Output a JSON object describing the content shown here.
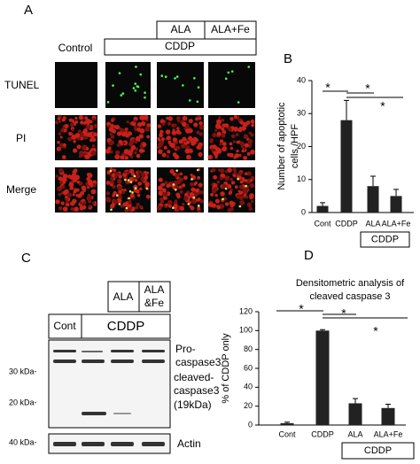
{
  "panel_a": {
    "label": "A",
    "headers": {
      "ala": "ALA",
      "ala_fe": "ALA+Fe",
      "cddp": "CDDP",
      "control": "Control"
    },
    "rows": [
      "TUNEL",
      "PI",
      "Merge"
    ]
  },
  "panel_c": {
    "label": "C",
    "headers": {
      "ala": "ALA",
      "ala_fe": [
        "ALA",
        "&Fe"
      ],
      "cont": "Cont",
      "cddp": "CDDP"
    },
    "markers": {
      "kda30": "30 kDa-",
      "kda20": "20 kDa-",
      "kda40": "40 kDa-"
    },
    "bands": {
      "pro": [
        "Pro-",
        "caspase3"
      ],
      "cleaved": [
        "cleaved-",
        "caspase3",
        "(19kDa)"
      ],
      "actin": "Actin"
    }
  },
  "chart_data": [
    {
      "type": "bar",
      "panel": "B",
      "ylabel": [
        "Number of apoptotic",
        "cells /HPF"
      ],
      "categories": [
        "Cont",
        "CDDP",
        "ALA",
        "ALA+Fe"
      ],
      "values": [
        2,
        28,
        8,
        5
      ],
      "errors": [
        1,
        6,
        3,
        2
      ],
      "color": "#222222",
      "ylim": [
        0,
        40
      ],
      "yticks": [
        0,
        10,
        20,
        30,
        40
      ],
      "group_label": "CDDP",
      "annotations": [
        "*",
        "*",
        "*"
      ]
    },
    {
      "type": "bar",
      "panel": "D",
      "title": [
        "Densitometric analysis of",
        "cleaved caspase 3"
      ],
      "ylabel": "% of CDDP only",
      "categories": [
        "Cont",
        "CDDP",
        "ALA",
        "ALA+Fe"
      ],
      "values": [
        2,
        100,
        23,
        18
      ],
      "errors": [
        1,
        1,
        5,
        4
      ],
      "color": "#222222",
      "ylim": [
        0,
        120
      ],
      "yticks": [
        0,
        20,
        40,
        60,
        80,
        100,
        120
      ],
      "group_label": "CDDP",
      "annotations": [
        "*",
        "*",
        "*"
      ]
    }
  ]
}
